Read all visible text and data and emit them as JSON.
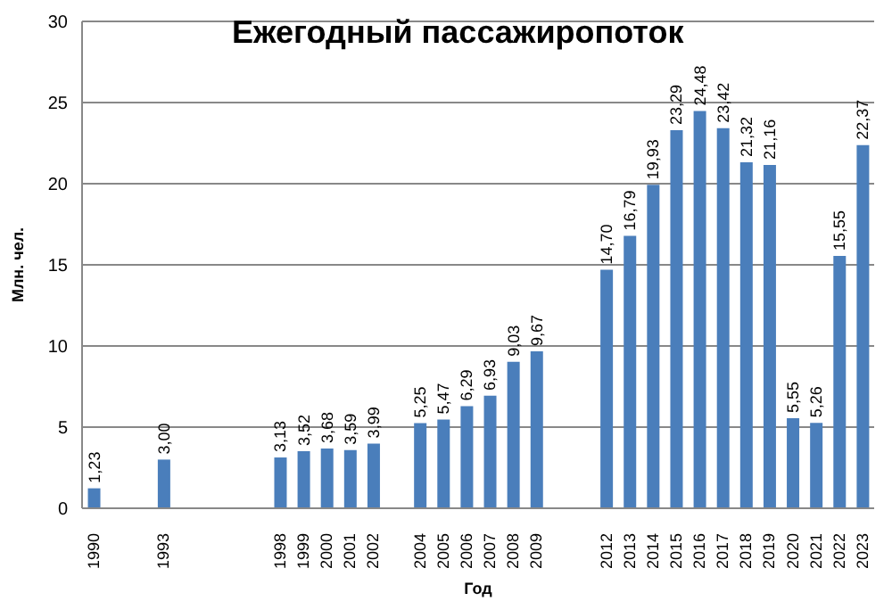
{
  "chart_data": {
    "type": "bar",
    "title": "Ежегодный пассажиропоток",
    "xlabel": "Год",
    "ylabel": "Млн. чел.",
    "categories": [
      "1990",
      null,
      null,
      "1993",
      null,
      null,
      null,
      null,
      "1998",
      "1999",
      "2000",
      "2001",
      "2002",
      null,
      "2004",
      "2005",
      "2006",
      "2007",
      "2008",
      "2009",
      null,
      null,
      "2012",
      "2013",
      "2014",
      "2015",
      "2016",
      "2017",
      "2018",
      "2019",
      "2020",
      "2021",
      "2022",
      "2023"
    ],
    "values": [
      1.23,
      null,
      null,
      3.0,
      null,
      null,
      null,
      null,
      3.13,
      3.52,
      3.68,
      3.59,
      3.99,
      null,
      5.25,
      5.47,
      6.29,
      6.93,
      9.03,
      9.67,
      null,
      null,
      14.7,
      16.79,
      19.93,
      23.29,
      24.48,
      23.42,
      21.32,
      21.16,
      5.55,
      5.26,
      15.55,
      22.37
    ],
    "value_labels": [
      "1,23",
      null,
      null,
      "3,00",
      null,
      null,
      null,
      null,
      "3,13",
      "3,52",
      "3,68",
      "3,59",
      "3,99",
      null,
      "5,25",
      "5,47",
      "6,29",
      "6,93",
      "9,03",
      "9,67",
      null,
      null,
      "14,70",
      "16,79",
      "19,93",
      "23,29",
      "24,48",
      "23,42",
      "21,32",
      "21,16",
      "5,55",
      "5,26",
      "15,55",
      "22,37"
    ],
    "color": "#4a7ebb",
    "ylim": [
      0,
      30
    ],
    "yticks": [
      0,
      5,
      10,
      15,
      20,
      25,
      30
    ],
    "grid": "y"
  }
}
